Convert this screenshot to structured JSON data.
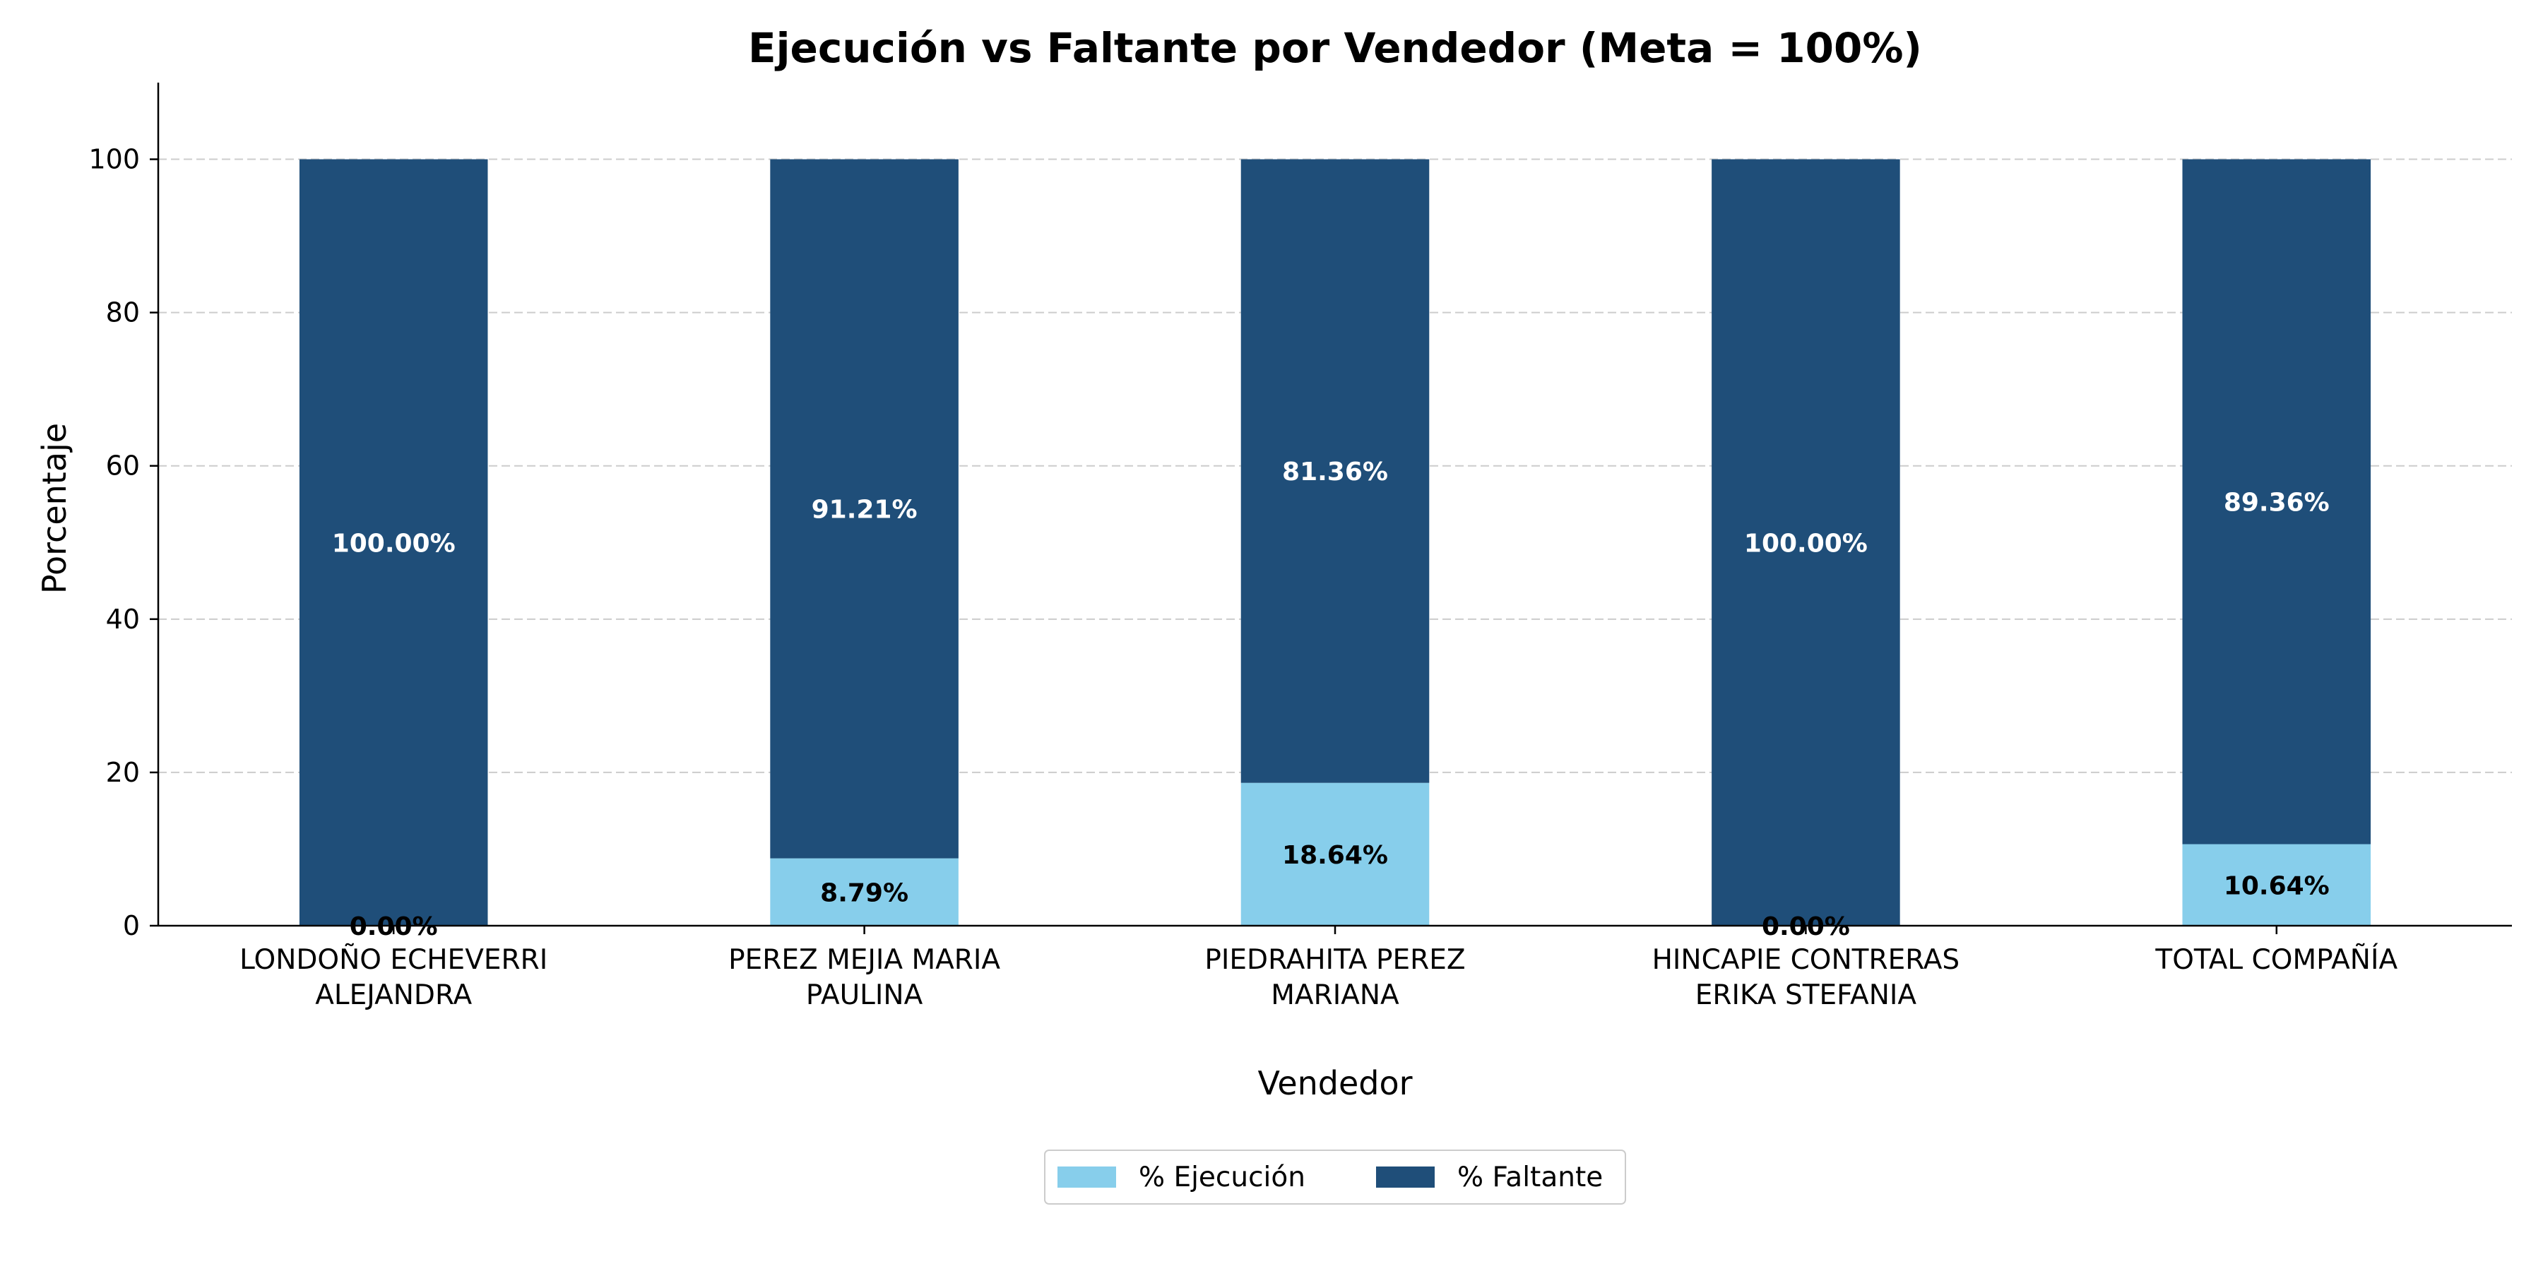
{
  "chart_data": {
    "type": "bar",
    "stacked": true,
    "title": "Ejecución vs Faltante por Vendedor (Meta = 100%)",
    "xlabel": "Vendedor",
    "ylabel": "Porcentaje",
    "ylim": [
      0,
      110
    ],
    "yticks": [
      0,
      20,
      40,
      60,
      80,
      100
    ],
    "grid": "y-dashed",
    "legend_placement": "bottom-center",
    "categories": [
      [
        "LONDOÑO ECHEVERRI",
        "ALEJANDRA"
      ],
      [
        "PEREZ MEJIA MARIA",
        "PAULINA"
      ],
      [
        "PIEDRAHITA PEREZ",
        "MARIANA"
      ],
      [
        "HINCAPIE CONTRERAS",
        "ERIKA STEFANIA"
      ],
      [
        "TOTAL COMPAÑÍA"
      ]
    ],
    "series": [
      {
        "name": "% Ejecución",
        "color": "#87CEEB",
        "label_color": "#000000",
        "values": [
          0.0,
          8.79,
          18.64,
          0.0,
          10.64
        ],
        "labels": [
          "0.00%",
          "8.79%",
          "18.64%",
          "0.00%",
          "10.64%"
        ]
      },
      {
        "name": "% Faltante",
        "color": "#1F4E79",
        "label_color": "#ffffff",
        "values": [
          100.0,
          91.21,
          81.36,
          100.0,
          89.36
        ],
        "labels": [
          "100.00%",
          "91.21%",
          "81.36%",
          "100.00%",
          "89.36%"
        ]
      }
    ]
  }
}
